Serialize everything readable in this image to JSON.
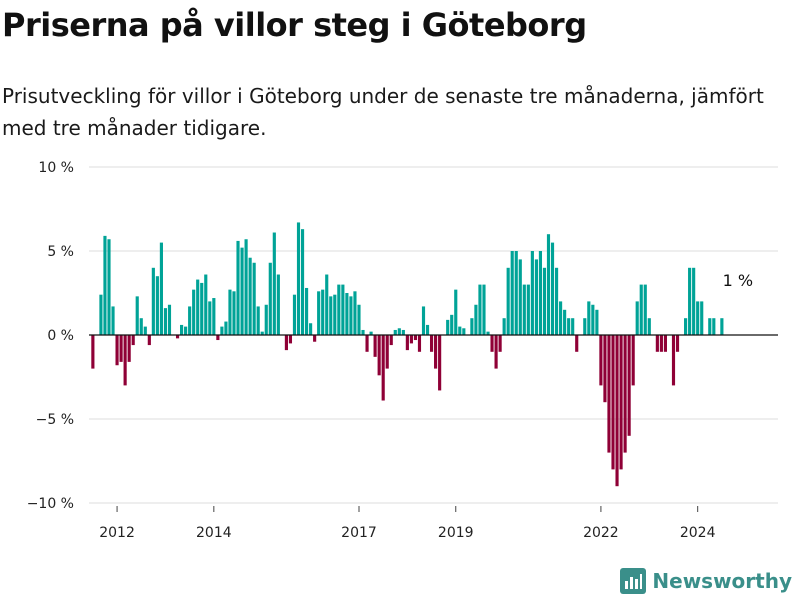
{
  "title": "Priserna på villor steg i Göteborg",
  "subtitle": "Prisutveckling för villor i Göteborg under de senaste tre månaderna, jämfört med tre månader tidigare.",
  "brand": {
    "name": "Newsworthy"
  },
  "colors": {
    "positive": "#00a397",
    "negative": "#8f0036",
    "grid": "#dddddd",
    "axis": "#111111",
    "brand": "#3a8f8a"
  },
  "chart_data": {
    "type": "bar",
    "ylim": [
      -10,
      10
    ],
    "yticks": [
      {
        "value": 10,
        "label": "10 %"
      },
      {
        "value": 5,
        "label": "5 %"
      },
      {
        "value": 0,
        "label": "0 %"
      },
      {
        "value": -5,
        "label": "−5 %"
      },
      {
        "value": -10,
        "label": "−10 %"
      }
    ],
    "xticks": [
      {
        "value": 2012,
        "label": "2012"
      },
      {
        "value": 2014,
        "label": "2014"
      },
      {
        "value": 2017,
        "label": "2017"
      },
      {
        "value": 2019,
        "label": "2019"
      },
      {
        "value": 2022,
        "label": "2022"
      },
      {
        "value": 2024,
        "label": "2024"
      }
    ],
    "xlim": [
      2011.42,
      2025.66
    ],
    "x_start": 2011.5,
    "annotation": "1 %",
    "values": [
      -2,
      0,
      2.4,
      5.9,
      5.7,
      1.7,
      -1.8,
      -1.6,
      -3,
      -1.6,
      -0.6,
      2.3,
      1,
      0.5,
      -0.6,
      4,
      3.5,
      5.5,
      1.6,
      1.8,
      0,
      -0.2,
      0.6,
      0.5,
      1.7,
      2.7,
      3.3,
      3.1,
      3.6,
      2,
      2.2,
      -0.3,
      0.5,
      0.8,
      2.7,
      2.6,
      5.6,
      5.2,
      5.7,
      4.6,
      4.3,
      1.7,
      0.2,
      1.8,
      4.3,
      6.1,
      3.6,
      0,
      -0.9,
      -0.5,
      2.4,
      6.7,
      6.3,
      2.8,
      0.7,
      -0.4,
      2.6,
      2.7,
      3.6,
      2.3,
      2.4,
      3,
      3,
      2.5,
      2.3,
      2.6,
      1.8,
      0.3,
      -1,
      0.2,
      -1.3,
      -2.4,
      -3.9,
      -2,
      -0.6,
      0.3,
      0.4,
      0.3,
      -0.9,
      -0.5,
      -0.3,
      -1,
      1.7,
      0.6,
      -1,
      -2,
      -3.3,
      0,
      0.9,
      1.2,
      2.7,
      0.5,
      0.4,
      0,
      1,
      1.8,
      3,
      3,
      0.2,
      -1,
      -2,
      -1,
      1,
      4,
      5,
      5,
      4.5,
      3,
      3,
      5,
      4.5,
      5,
      4,
      6,
      5.5,
      4,
      2,
      1.5,
      1,
      1,
      -1,
      0,
      1,
      2,
      1.8,
      1.5,
      -3,
      -4,
      -7,
      -8,
      -9,
      -8,
      -7,
      -6,
      -3,
      2,
      3,
      3,
      1,
      0,
      -1,
      -1,
      -1,
      0,
      -3,
      -1,
      0,
      1,
      4,
      4,
      2,
      2,
      0,
      1,
      1,
      0,
      1
    ]
  }
}
